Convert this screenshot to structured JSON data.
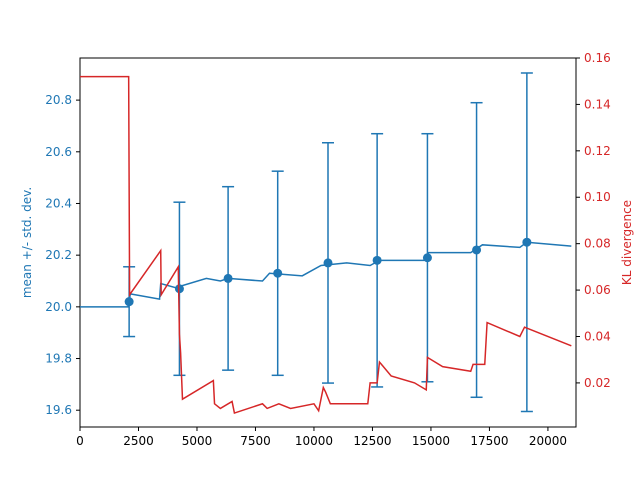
{
  "chart_data": {
    "type": "line",
    "ylabel": "mean +/- std. dev.",
    "y2label": "KL divergence",
    "xlim": [
      0,
      21200
    ],
    "xticks": [
      0,
      2500,
      5000,
      7500,
      10000,
      12500,
      15000,
      17500,
      20000
    ],
    "ylim": [
      19.535,
      20.963
    ],
    "yticks": [
      19.6,
      19.8,
      {
        "value": 20,
        "label": "20.0"
      },
      20.2,
      20.4,
      20.6,
      20.8
    ],
    "y2lim": [
      0.001,
      0.16
    ],
    "y2ticks": [
      0.02,
      0.04,
      0.06,
      0.08,
      {
        "value": 0.1,
        "label": "0.10"
      },
      0.12,
      0.14,
      0.16
    ],
    "ycolor": "#1f77b4",
    "y2color": "#d62728",
    "series": [
      {
        "style": "line",
        "color": "#1f77b4",
        "axis": "y",
        "x": [
          0,
          2050,
          2100,
          2150,
          3400,
          3450,
          4250,
          4300,
          5400,
          6000,
          6330,
          7800,
          8100,
          9500,
          10300,
          11400,
          12400,
          12800,
          14700,
          14900,
          16700,
          17200,
          18800,
          19100,
          21000
        ],
        "values": [
          20.0,
          20.0,
          20.02,
          20.05,
          20.03,
          20.09,
          20.07,
          20.08,
          20.11,
          20.1,
          20.11,
          20.1,
          20.13,
          20.12,
          20.16,
          20.17,
          20.16,
          20.18,
          20.18,
          20.21,
          20.21,
          20.24,
          20.23,
          20.25,
          20.235
        ]
      },
      {
        "style": "errorbar",
        "color": "#1f77b4",
        "axis": "y",
        "x": [
          2100,
          4250,
          6330,
          8450,
          10600,
          12700,
          14850,
          16950,
          19100
        ],
        "values": [
          20.02,
          20.07,
          20.11,
          20.13,
          20.17,
          20.18,
          20.19,
          20.22,
          20.25
        ],
        "errors": [
          0.135,
          0.335,
          0.355,
          0.395,
          0.465,
          0.49,
          0.48,
          0.57,
          0.655
        ]
      },
      {
        "style": "line",
        "color": "#d62728",
        "axis": "y2",
        "x": [
          0,
          2080,
          2120,
          3450,
          3470,
          4200,
          4250,
          4300,
          4380,
          5700,
          5750,
          6000,
          6500,
          6600,
          7800,
          8000,
          8500,
          9000,
          10000,
          10200,
          10400,
          10500,
          10700,
          12300,
          12400,
          12700,
          12800,
          13300,
          14300,
          14800,
          14850,
          15500,
          16700,
          16800,
          17300,
          17400,
          18800,
          19000,
          21000
        ],
        "values": [
          0.152,
          0.152,
          0.058,
          0.077,
          0.058,
          0.07,
          0.041,
          0.033,
          0.013,
          0.021,
          0.011,
          0.009,
          0.012,
          0.007,
          0.011,
          0.009,
          0.011,
          0.009,
          0.011,
          0.008,
          0.018,
          0.016,
          0.011,
          0.011,
          0.02,
          0.02,
          0.029,
          0.023,
          0.02,
          0.017,
          0.031,
          0.027,
          0.025,
          0.028,
          0.028,
          0.046,
          0.04,
          0.044,
          0.036
        ]
      }
    ]
  }
}
